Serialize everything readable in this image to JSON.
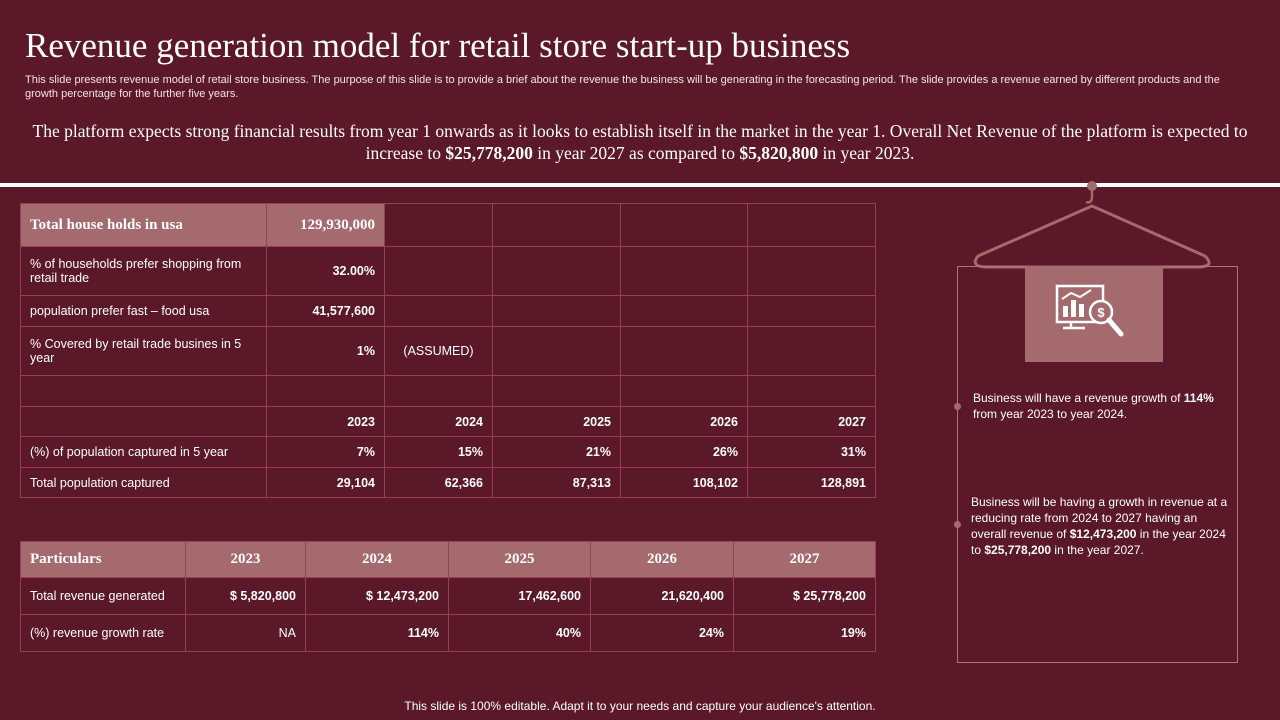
{
  "title": "Revenue generation model for retail store start-up business",
  "description": "This slide presents revenue model of retail store business. The purpose of this slide is to provide a brief about the revenue the business will be generating in the forecasting period. The slide provides a revenue earned by different products and the growth percentage for the further five years.",
  "summary": {
    "part1": "The platform expects strong financial  results from year 1 onwards as it looks to establish itself in the market in the year 1. Overall Net Revenue of the platform is expected to increase to ",
    "value1": "$25,778,200",
    "part2": " in year 2027 as compared to ",
    "value2": "$5,820,800",
    "part3": " in year 2023."
  },
  "table1": {
    "header": {
      "label": "Total house holds in usa",
      "value": "129,930,000"
    },
    "rows": [
      {
        "label": "% of households prefer  shopping from retail trade",
        "value": "32.00%",
        "note": ""
      },
      {
        "label": "population prefer fast – food usa",
        "value": "41,577,600",
        "note": ""
      },
      {
        "label": "% Covered  by retail trade busines  in 5 year",
        "value": "1%",
        "note": "(ASSUMED)"
      }
    ],
    "years": [
      "2023",
      "2024",
      "2025",
      "2026",
      "2027"
    ],
    "captured_pct": {
      "label": "(%) of population captured in 5 year",
      "values": [
        "7%",
        "15%",
        "21%",
        "26%",
        "31%"
      ]
    },
    "captured_total": {
      "label": "Total population captured",
      "values": [
        "29,104",
        "62,366",
        "87,313",
        "108,102",
        "128,891"
      ]
    }
  },
  "table2": {
    "header": [
      "Particulars",
      "2023",
      "2024",
      "2025",
      "2026",
      "2027"
    ],
    "rows": [
      {
        "label": "Total revenue  generated",
        "values": [
          "$ 5,820,800",
          "$ 12,473,200",
          "17,462,600",
          "21,620,400",
          "$ 25,778,200"
        ]
      },
      {
        "label": "(%)  revenue  growth rate",
        "values": [
          "NA",
          "114%",
          "40%",
          "24%",
          "19%"
        ]
      }
    ]
  },
  "notes": {
    "note1": {
      "t1": "Business will have  a revenue  growth of ",
      "b1": "114%",
      "t2": " from year 2023 to year 2024."
    },
    "note2": {
      "t1": "Business will be having  a growth in revenue at a reducing rate from 2024 to 2027 having an overall  revenue  of ",
      "b1": "$12,473,200",
      "t2": " in the year 2024 to ",
      "b2": "$25,778,200",
      "t3": " in the year 2027."
    }
  },
  "icon": "revenue-analysis-icon",
  "footer": "This slide is 100% editable. Adapt it to your needs and capture your audience's attention.",
  "colors": {
    "background": "#5b1829",
    "accent": "#a46a6e",
    "border": "#9a3f53"
  }
}
